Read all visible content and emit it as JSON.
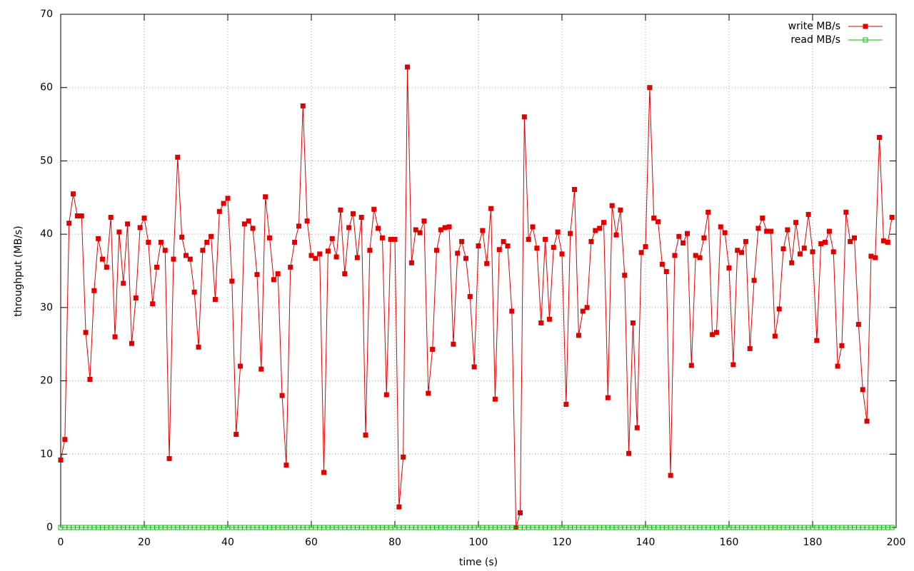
{
  "chart_data": {
    "type": "line",
    "xlabel": "time (s)",
    "ylabel": "throughput (MB/s)",
    "xlim": [
      0,
      200
    ],
    "xticks": [
      0,
      20,
      40,
      60,
      80,
      100,
      120,
      140,
      160,
      180,
      200
    ],
    "ylim": [
      0,
      70
    ],
    "yticks": [
      0,
      10,
      20,
      30,
      40,
      50,
      60,
      70
    ],
    "grid": true,
    "legend": "top-right",
    "x": [
      0,
      1,
      2,
      3,
      4,
      5,
      6,
      7,
      8,
      9,
      10,
      11,
      12,
      13,
      14,
      15,
      16,
      17,
      18,
      19,
      20,
      21,
      22,
      23,
      24,
      25,
      26,
      27,
      28,
      29,
      30,
      31,
      32,
      33,
      34,
      35,
      36,
      37,
      38,
      39,
      40,
      41,
      42,
      43,
      44,
      45,
      46,
      47,
      48,
      49,
      50,
      51,
      52,
      53,
      54,
      55,
      56,
      57,
      58,
      59,
      60,
      61,
      62,
      63,
      64,
      65,
      66,
      67,
      68,
      69,
      70,
      71,
      72,
      73,
      74,
      75,
      76,
      77,
      78,
      79,
      80,
      81,
      82,
      83,
      84,
      85,
      86,
      87,
      88,
      89,
      90,
      91,
      92,
      93,
      94,
      95,
      96,
      97,
      98,
      99,
      100,
      101,
      102,
      103,
      104,
      105,
      106,
      107,
      108,
      109,
      110,
      111,
      112,
      113,
      114,
      115,
      116,
      117,
      118,
      119,
      120,
      121,
      122,
      123,
      124,
      125,
      126,
      127,
      128,
      129,
      130,
      131,
      132,
      133,
      134,
      135,
      136,
      137,
      138,
      139,
      140,
      141,
      142,
      143,
      144,
      145,
      146,
      147,
      148,
      149,
      150,
      151,
      152,
      153,
      154,
      155,
      156,
      157,
      158,
      159,
      160,
      161,
      162,
      163,
      164,
      165,
      166,
      167,
      168,
      169,
      170,
      171,
      172,
      173,
      174,
      175,
      176,
      177,
      178,
      179,
      180,
      181,
      182,
      183,
      184,
      185,
      186,
      187,
      188,
      189,
      190,
      191,
      192,
      193,
      194,
      195,
      196,
      197,
      198,
      199
    ],
    "series": [
      {
        "name": "write MB/s",
        "color": "#e00000",
        "marker": "filled-square",
        "values": [
          9.2,
          12,
          41.5,
          45.5,
          42.5,
          42.5,
          26.6,
          20.2,
          32.3,
          39.4,
          36.6,
          35.5,
          42.3,
          26,
          40.3,
          33.3,
          41.4,
          25.1,
          31.3,
          40.9,
          42.2,
          38.9,
          30.5,
          35.5,
          38.9,
          37.8,
          9.4,
          36.6,
          50.5,
          39.6,
          37.1,
          36.6,
          32.1,
          24.6,
          37.8,
          38.9,
          39.7,
          31.1,
          43.1,
          44.2,
          44.9,
          33.6,
          12.7,
          22,
          41.4,
          41.8,
          40.8,
          34.5,
          21.6,
          45.1,
          39.5,
          33.8,
          34.6,
          18,
          8.5,
          35.5,
          38.9,
          41.1,
          57.5,
          41.8,
          37.1,
          36.7,
          37.3,
          7.5,
          37.7,
          39.4,
          36.9,
          43.3,
          34.6,
          40.9,
          42.8,
          36.8,
          42.3,
          12.6,
          37.8,
          43.4,
          40.8,
          39.5,
          18.1,
          39.3,
          39.3,
          2.8,
          9.6,
          62.8,
          36.1,
          40.6,
          40.2,
          41.8,
          18.3,
          24.3,
          37.8,
          40.6,
          40.9,
          41,
          25,
          37.4,
          39,
          36.7,
          31.5,
          21.9,
          38.4,
          40.5,
          36,
          43.5,
          17.5,
          37.9,
          39,
          38.4,
          29.5,
          0,
          2,
          56,
          39.3,
          41,
          38.1,
          27.9,
          39.3,
          28.4,
          38.2,
          40.3,
          37.3,
          16.8,
          40.1,
          46.1,
          26.2,
          29.5,
          30,
          39,
          40.5,
          40.8,
          41.6,
          17.7,
          43.9,
          39.9,
          43.3,
          34.4,
          10.1,
          27.9,
          13.6,
          37.5,
          38.3,
          60,
          42.2,
          41.7,
          35.9,
          34.9,
          7.1,
          37.1,
          39.7,
          38.8,
          40.1,
          22.1,
          37.1,
          36.8,
          39.5,
          43,
          26.3,
          26.6,
          41,
          40.2,
          35.4,
          22.2,
          37.8,
          37.5,
          39,
          24.4,
          33.7,
          40.8,
          42.2,
          40.4,
          40.4,
          26.1,
          29.8,
          38,
          40.6,
          36.1,
          41.6,
          37.3,
          38.1,
          42.7,
          37.6,
          25.5,
          38.7,
          38.9,
          40.4,
          37.6,
          22,
          24.8,
          43,
          39,
          39.5,
          27.7,
          18.8,
          14.5,
          37,
          36.8,
          53.2,
          39.1,
          38.9,
          42.3
        ]
      },
      {
        "name": "read MB/s",
        "color": "#00c000",
        "marker": "open-square",
        "values": [
          0,
          0,
          0,
          0,
          0,
          0,
          0,
          0,
          0,
          0,
          0,
          0,
          0,
          0,
          0,
          0,
          0,
          0,
          0,
          0,
          0,
          0,
          0,
          0,
          0,
          0,
          0,
          0,
          0,
          0,
          0,
          0,
          0,
          0,
          0,
          0,
          0,
          0,
          0,
          0,
          0,
          0,
          0,
          0,
          0,
          0,
          0,
          0,
          0,
          0,
          0,
          0,
          0,
          0,
          0,
          0,
          0,
          0,
          0,
          0,
          0,
          0,
          0,
          0,
          0,
          0,
          0,
          0,
          0,
          0,
          0,
          0,
          0,
          0,
          0,
          0,
          0,
          0,
          0,
          0,
          0,
          0,
          0,
          0,
          0,
          0,
          0,
          0,
          0,
          0,
          0,
          0,
          0,
          0,
          0,
          0,
          0,
          0,
          0,
          0,
          0,
          0,
          0,
          0,
          0,
          0,
          0,
          0,
          0,
          0,
          0,
          0,
          0,
          0,
          0,
          0,
          0,
          0,
          0,
          0,
          0,
          0,
          0,
          0,
          0,
          0,
          0,
          0,
          0,
          0,
          0,
          0,
          0,
          0,
          0,
          0,
          0,
          0,
          0,
          0,
          0,
          0,
          0,
          0,
          0,
          0,
          0,
          0,
          0,
          0,
          0,
          0,
          0,
          0,
          0,
          0,
          0,
          0,
          0,
          0,
          0,
          0,
          0,
          0,
          0,
          0,
          0,
          0,
          0,
          0,
          0,
          0,
          0,
          0,
          0,
          0,
          0,
          0,
          0,
          0,
          0,
          0,
          0,
          0,
          0,
          0,
          0,
          0,
          0,
          0,
          0,
          0,
          0,
          0,
          0,
          0,
          0,
          0,
          0,
          0
        ]
      }
    ]
  }
}
